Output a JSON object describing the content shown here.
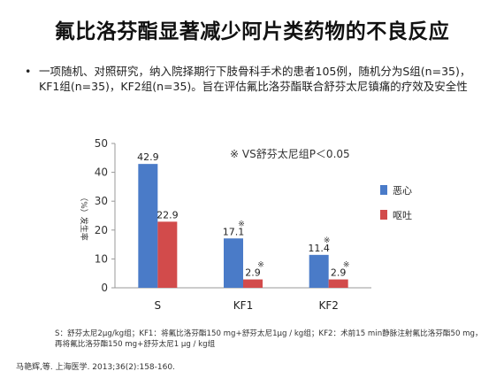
{
  "title": "氟比洛芬酯显著减少阿片类药物的不良反应",
  "bullet": {
    "marker": "•",
    "text": "一项随机、对照研究，纳入院择期行下肢骨科手术的患者105例，随机分为S组(n=35)，KF1组(n=35)，KF2组(n=35)。旨在评估氟比洛芬酯联合舒芬太尼镇痛的疗效及安全性"
  },
  "chart_data": {
    "type": "bar",
    "categories": [
      "S",
      "KF1",
      "KF2"
    ],
    "series": [
      {
        "name": "恶心",
        "values": [
          42.9,
          17.1,
          11.4
        ],
        "labels": [
          "42.9",
          "17.1",
          "11.4"
        ],
        "marks": [
          "",
          "※",
          "※"
        ],
        "color": "#4A7BC8"
      },
      {
        "name": "呕吐",
        "values": [
          22.9,
          2.9,
          2.9
        ],
        "labels": [
          "22.9",
          "2.9",
          "2.9"
        ],
        "marks": [
          "",
          "※",
          "※"
        ],
        "color": "#D24B4B"
      }
    ],
    "ylim": [
      0,
      50
    ],
    "yticks": [
      0,
      10,
      20,
      30,
      40,
      50
    ],
    "ylabel": "（%）发生率",
    "annotation": "※ VS舒芬太尼组P＜0.05",
    "legend_position": "right",
    "grid": false
  },
  "footnote": "S：舒芬太尼2μg/kg组；KF1：将氟比洛芬酯150 mg+舒芬太尼1μg / kg组；KF2：术前15 min静脉注射氟比洛芬酯50 mg，再将氟比洛芬酯150 mg+舒芬太尼1 μg / kg组",
  "reference": "马艳辉,等. 上海医学. 2013;36(2):158-160."
}
